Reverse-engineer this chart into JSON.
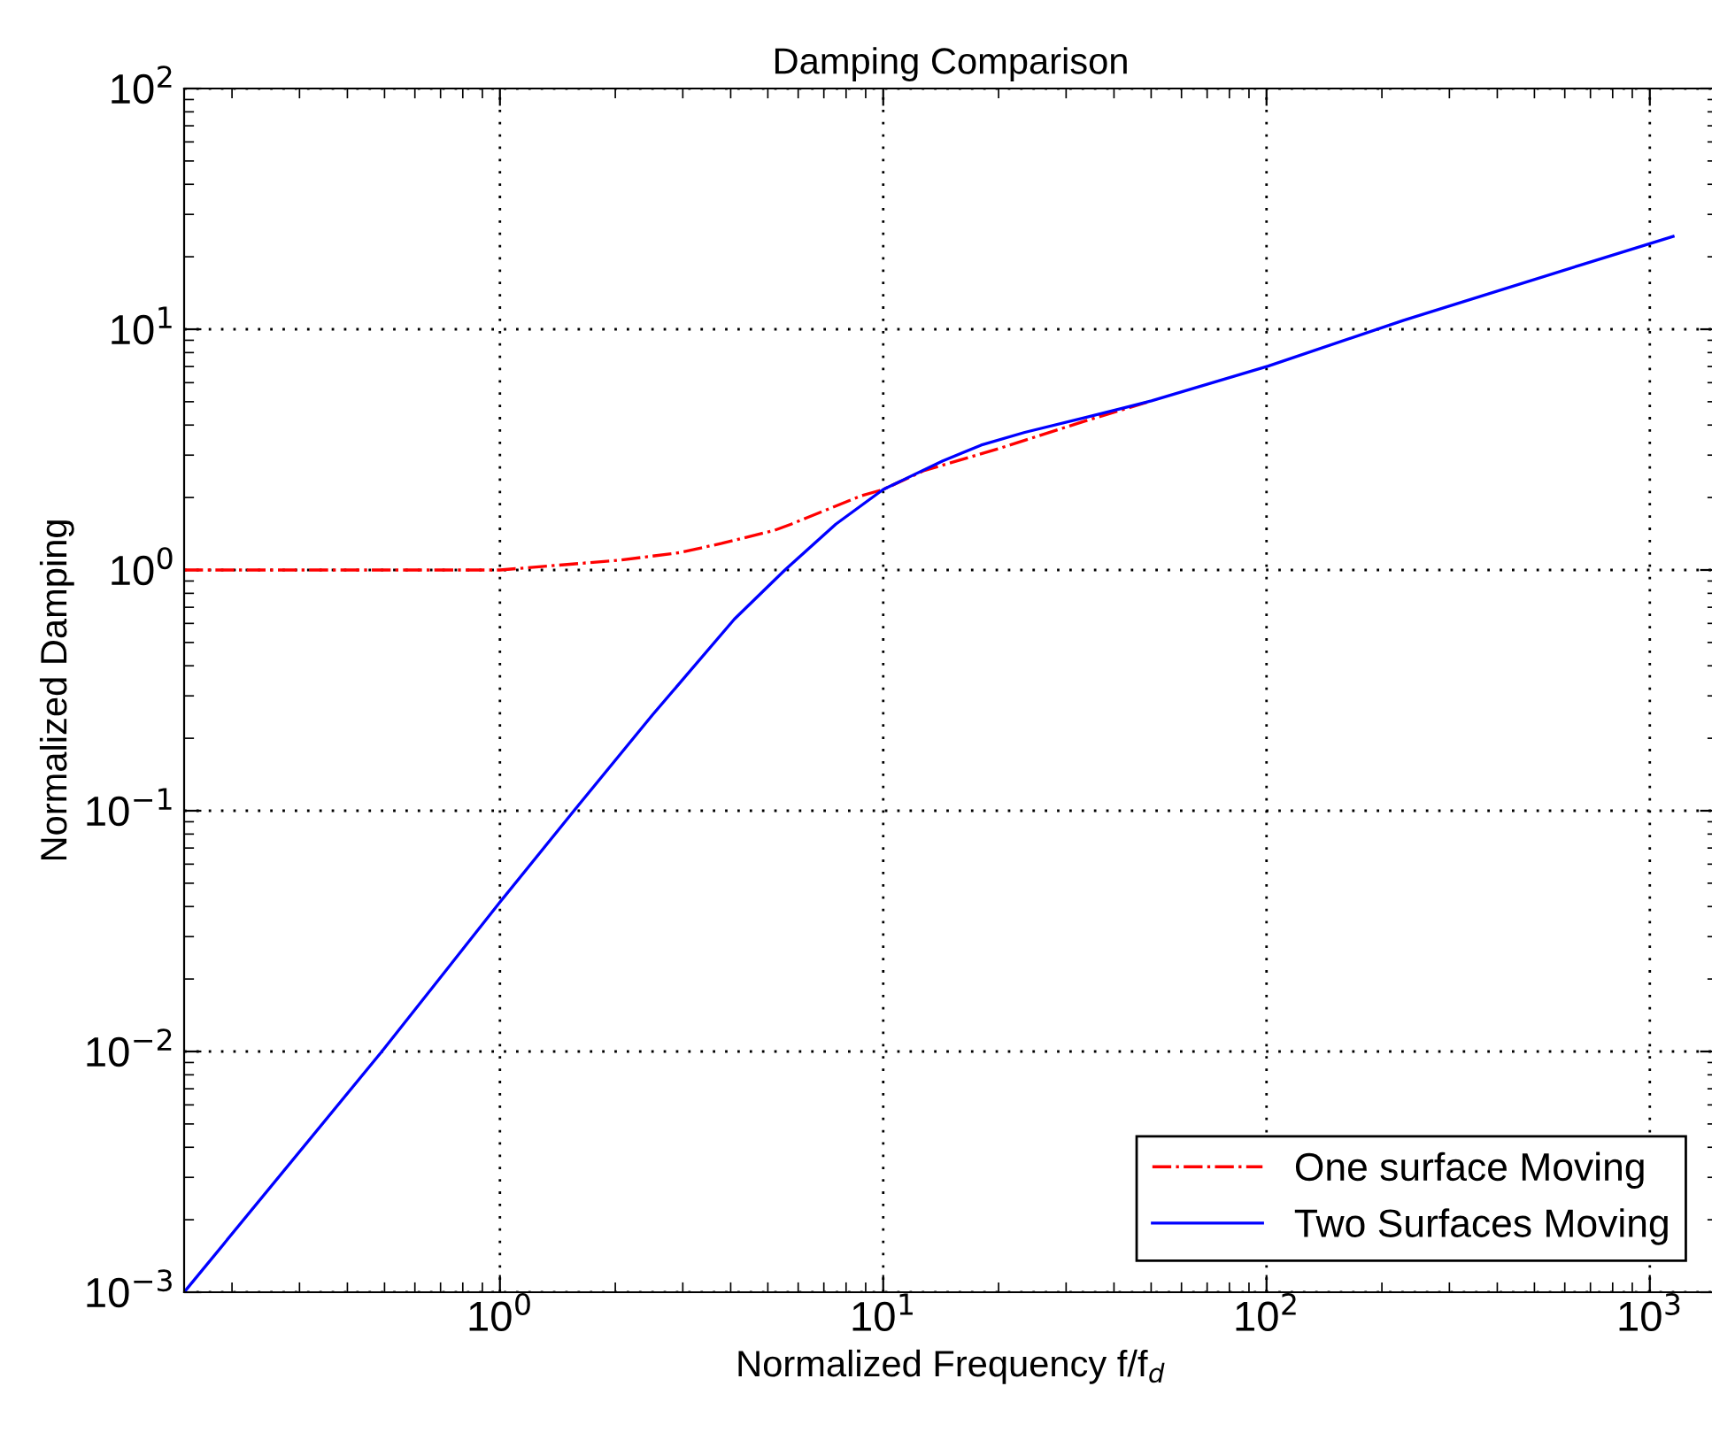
{
  "chart_data": {
    "type": "line",
    "title": "Damping Comparison",
    "xlabel": "Normalized Frequency f/f$_{d}$",
    "ylabel": "Normalized Damping",
    "log": "xy",
    "grid": true,
    "legend": "bottom right",
    "xlim": [
      0.15,
      1500
    ],
    "ylim": [
      0.001,
      100
    ],
    "xticks": [
      {
        "value": 1,
        "label": "10$^{0}$"
      },
      {
        "value": 10,
        "label": "10$^{1}$"
      },
      {
        "value": 100,
        "label": "10$^{2}$"
      },
      {
        "value": 1000,
        "label": "10$^{3}$"
      }
    ],
    "yticks": [
      {
        "value": 0.001,
        "label": "10$^{−3}$"
      },
      {
        "value": 0.01,
        "label": "10$^{−2}$"
      },
      {
        "value": 0.1,
        "label": "10$^{−1}$"
      },
      {
        "value": 1,
        "label": "10$^{0}$"
      },
      {
        "value": 10,
        "label": "10$^{1}$"
      },
      {
        "value": 100,
        "label": "10$^{2}$"
      }
    ],
    "series": [
      {
        "name": "One surface Moving",
        "color": "#ff0000",
        "line_style": "dashdot",
        "x": [
          0.15,
          0.5,
          1,
          2.07,
          2.94,
          3.79,
          5.19,
          5.75,
          8.74,
          10,
          12.8,
          20.1,
          34.3,
          50.1
        ],
        "values": [
          1.0,
          1.0,
          1.0,
          1.1,
          1.18,
          1.29,
          1.46,
          1.55,
          2.03,
          2.16,
          2.59,
          3.2,
          4.2,
          5.04
        ]
      },
      {
        "name": "Two Surfaces Moving",
        "color": "#0000ff",
        "line_style": "solid",
        "x": [
          0.15,
          0.492,
          1,
          1.56,
          2.5,
          4.09,
          5.54,
          7.52,
          10,
          14.3,
          18.0,
          23.4,
          34.3,
          50.1,
          101,
          228,
          661,
          1150
        ],
        "values": [
          0.001,
          0.01,
          0.0417,
          0.1,
          0.25,
          0.625,
          1.0,
          1.55,
          2.16,
          2.84,
          3.3,
          3.73,
          4.33,
          5.04,
          7.03,
          10.9,
          18.5,
          24.3
        ]
      }
    ]
  }
}
